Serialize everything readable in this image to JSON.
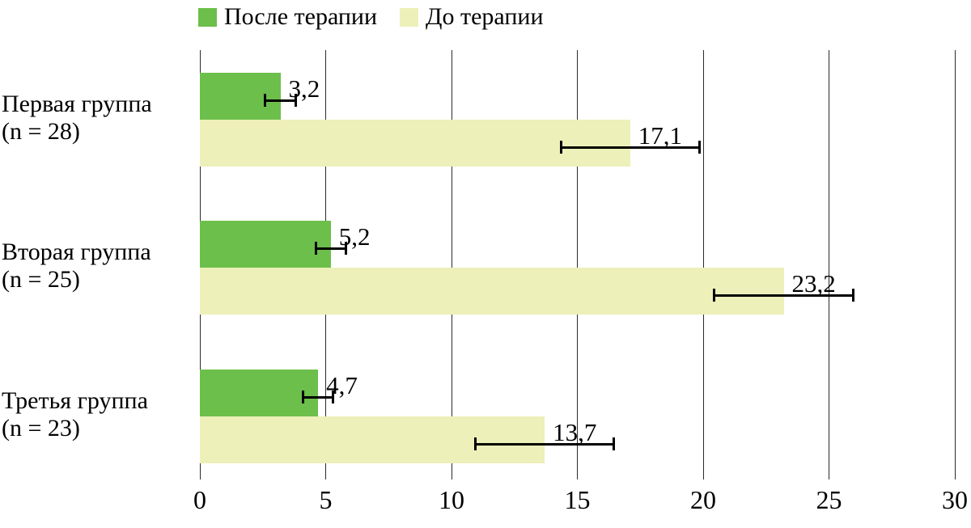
{
  "legend": {
    "items": [
      {
        "label": "После терапии",
        "color": "#6cbf4a"
      },
      {
        "label": "До терапии",
        "color": "#edf0b9"
      }
    ]
  },
  "chart_data": {
    "type": "bar",
    "orientation": "horizontal",
    "title": "",
    "xlabel": "",
    "ylabel": "",
    "xlim": [
      0,
      30
    ],
    "xticks": [
      "0",
      "5",
      "10",
      "15",
      "20",
      "25",
      "30"
    ],
    "grid": "vertical",
    "legend_position": "top",
    "decimal_separator": ",",
    "groups": [
      {
        "label": "Первая группа",
        "sub": "(n = 28)"
      },
      {
        "label": "Вторая группа",
        "sub": "(n = 25)"
      },
      {
        "label": "Третья группа",
        "sub": "(n = 23)"
      }
    ],
    "series": [
      {
        "name": "После терапии",
        "color": "#6cbf4a",
        "values": [
          3.2,
          5.2,
          4.7
        ],
        "errors": [
          0.65,
          0.65,
          0.65
        ],
        "value_labels": [
          "3,2",
          "5,2",
          "4,7"
        ]
      },
      {
        "name": "До терапии",
        "color": "#edf0b9",
        "values": [
          17.1,
          23.2,
          13.7
        ],
        "errors": [
          2.8,
          2.8,
          2.8
        ],
        "value_labels": [
          "17,1",
          "23,2",
          "13,7"
        ]
      }
    ]
  }
}
